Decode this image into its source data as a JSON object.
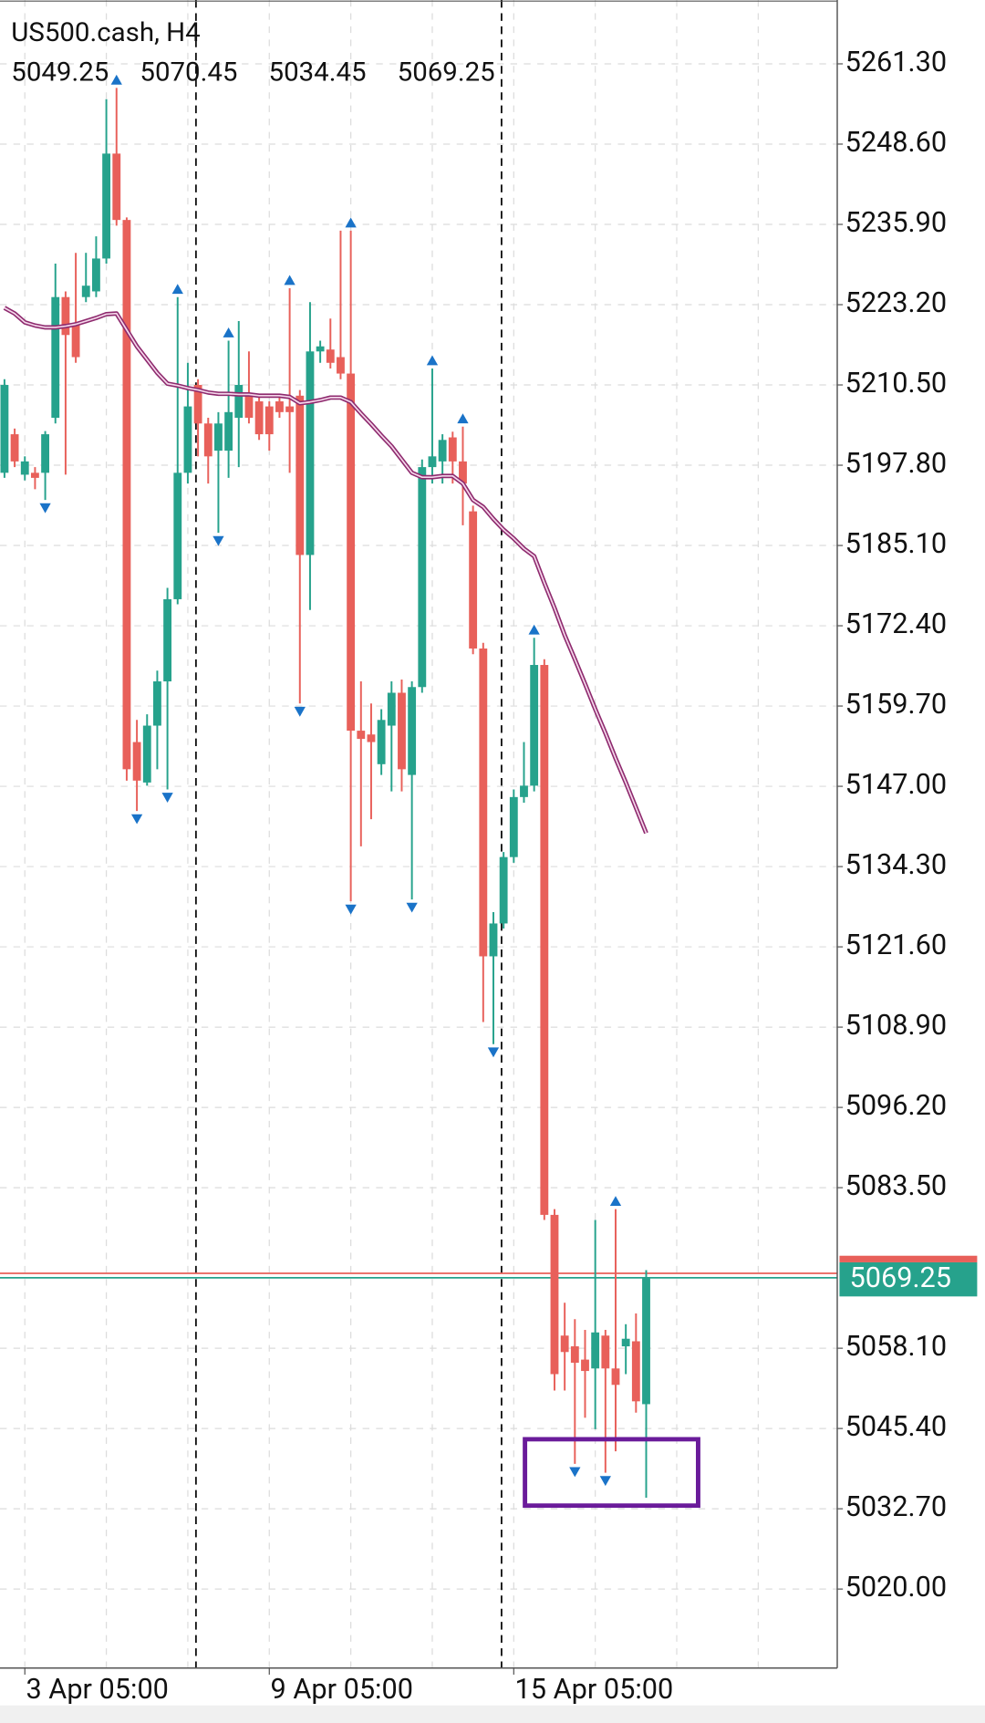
{
  "chart_data": {
    "type": "candlestick",
    "title": "US500.cash, H4",
    "categories": [
      null,
      null,
      "3 Apr 05:00",
      null,
      null,
      null,
      null,
      null,
      null,
      null,
      null,
      null,
      null,
      null,
      null,
      null,
      null,
      null,
      null,
      null,
      null,
      null,
      null,
      null,
      null,
      null,
      "9 Apr 05:00",
      null,
      null,
      null,
      null,
      null,
      null,
      null,
      null,
      null,
      null,
      null,
      null,
      null,
      null,
      null,
      null,
      null,
      null,
      null,
      null,
      null,
      null,
      null,
      "15 Apr 05:00",
      null,
      null,
      null,
      null,
      null,
      null,
      null,
      null,
      null,
      null,
      null,
      null,
      null
    ],
    "open": [
      5196.6,
      5202.7,
      5196.3,
      5196.6,
      5196.6,
      5205.3,
      5224.4,
      5220.1,
      5224.4,
      5225.3,
      5230.5,
      5247.1,
      5236.6,
      5154.0,
      5147.6,
      5156.6,
      5163.6,
      5176.6,
      5196.6,
      5210.5,
      5204.4,
      5200.1,
      5200.1,
      5205.3,
      5208.8,
      5207.9,
      5207.1,
      5207.9,
      5207.1,
      5208.8,
      5183.6,
      5215.8,
      5216.1,
      5214.9,
      5212.3,
      5155.8,
      5155.2,
      5150.5,
      5156.6,
      5161.8,
      5148.8,
      5162.7,
      5197.5,
      5198.4,
      5202.2,
      5198.4,
      5190.5,
      5168.8,
      5120.1,
      5125.3,
      5135.8,
      5145.3,
      5147.1,
      5166.2,
      5079.2,
      5060.1,
      5058.4,
      5056.3,
      5054.9,
      5060.1,
      5054.9,
      5058.4,
      5059.2,
      5049.25
    ],
    "high": [
      5211.4,
      5203.6,
      5199.2,
      5197.5,
      5203.2,
      5229.7,
      5225.3,
      5231.4,
      5231.4,
      5234.0,
      5255.7,
      5257.5,
      5237.0,
      5157.5,
      5158.4,
      5165.3,
      5178.4,
      5224.4,
      5214.0,
      5211.4,
      5205.3,
      5206.2,
      5217.5,
      5220.6,
      5215.8,
      5208.8,
      5207.9,
      5208.8,
      5225.8,
      5209.7,
      5223.6,
      5217.5,
      5221.0,
      5234.9,
      5234.9,
      5163.6,
      5160.1,
      5159.2,
      5163.6,
      5163.9,
      5163.6,
      5198.7,
      5213.1,
      5202.7,
      5203.1,
      5203.9,
      5191.4,
      5169.7,
      5127.1,
      5136.6,
      5146.5,
      5154.0,
      5170.5,
      5167.1,
      5080.1,
      5065.3,
      5062.7,
      5061.0,
      5078.4,
      5061.0,
      5080.1,
      5061.9,
      5063.6,
      5070.45
    ],
    "low": [
      5195.8,
      5197.5,
      5195.4,
      5194.0,
      5192.3,
      5204.4,
      5196.3,
      5214.0,
      5223.6,
      5224.4,
      5229.7,
      5235.7,
      5147.9,
      5143.1,
      5147.1,
      5149.7,
      5146.5,
      5175.8,
      5194.9,
      5199.2,
      5194.9,
      5187.1,
      5195.8,
      5197.5,
      5204.4,
      5201.8,
      5200.1,
      5205.3,
      5196.6,
      5160.1,
      5174.9,
      5214.0,
      5213.1,
      5211.4,
      5128.8,
      5137.5,
      5141.8,
      5148.8,
      5146.2,
      5146.2,
      5129.1,
      5161.8,
      5194.9,
      5194.9,
      5194.9,
      5188.3,
      5167.9,
      5109.7,
      5106.2,
      5124.5,
      5134.9,
      5144.4,
      5146.2,
      5078.4,
      5051.4,
      5051.4,
      5039.8,
      5047.1,
      5045.3,
      5038.4,
      5041.8,
      5054.0,
      5047.9,
      5034.45
    ],
    "close": [
      5210.5,
      5198.4,
      5198.4,
      5195.8,
      5202.7,
      5224.4,
      5218.4,
      5214.9,
      5226.2,
      5230.5,
      5247.1,
      5236.6,
      5149.7,
      5147.9,
      5156.6,
      5163.6,
      5176.6,
      5196.6,
      5207.1,
      5204.4,
      5199.2,
      5204.4,
      5206.2,
      5210.5,
      5205.3,
      5202.7,
      5202.7,
      5206.2,
      5206.2,
      5183.6,
      5215.8,
      5216.6,
      5214.0,
      5212.3,
      5155.8,
      5154.5,
      5154.0,
      5157.5,
      5161.8,
      5149.7,
      5162.7,
      5197.5,
      5199.2,
      5201.8,
      5198.4,
      5194.9,
      5168.8,
      5120.1,
      5125.3,
      5135.8,
      5145.3,
      5147.1,
      5166.2,
      5079.2,
      5054.0,
      5057.5,
      5055.8,
      5054.5,
      5060.6,
      5054.9,
      5052.3,
      5059.6,
      5049.7,
      5069.25
    ],
    "up_color": "#26a28c",
    "down_color": "#e8605a",
    "moving_average": {
      "color": "#8e2a6e",
      "values": [
        5222.7,
        5221.8,
        5220.4,
        5219.9,
        5219.6,
        5219.6,
        5219.8,
        5220.1,
        5220.6,
        5221.1,
        5221.7,
        5221.8,
        5219.2,
        5216.6,
        5214.5,
        5212.4,
        5210.7,
        5210.4,
        5210.0,
        5209.7,
        5209.3,
        5209.1,
        5209.1,
        5209.0,
        5209.0,
        5208.8,
        5208.8,
        5208.8,
        5208.6,
        5207.6,
        5207.8,
        5208.1,
        5208.5,
        5208.5,
        5207.8,
        5206.0,
        5204.3,
        5202.5,
        5200.8,
        5198.7,
        5196.6,
        5195.9,
        5195.9,
        5196.1,
        5196.1,
        5194.9,
        5192.3,
        5191.2,
        5189.3,
        5187.6,
        5186.2,
        5184.6,
        5183.4,
        5179.2,
        5175.2,
        5170.9,
        5167.1,
        5163.2,
        5159.2,
        5155.4,
        5151.4,
        5147.6,
        5143.6,
        5139.6
      ]
    },
    "fractal_up": [
      11,
      17,
      22,
      28,
      34,
      42,
      45,
      52,
      60
    ],
    "fractal_down": [
      4,
      13,
      16,
      21,
      29,
      34,
      40,
      48,
      56,
      59
    ],
    "fractal_color": "#1a73c8",
    "bid": 5069.25,
    "ask": 5069.95,
    "bid_color": "#26a28c",
    "ask_color": "#e8605a",
    "annotation_box": {
      "x": [
        51.1,
        68.1
      ],
      "y": [
        5033.2,
        5043.7
      ],
      "color": "#6a1b9a"
    },
    "ylim": [
      5007.5,
      5271.4
    ],
    "yticks": [
      {
        "value": 5020,
        "label": "5020.00"
      },
      {
        "value": 5032.7,
        "label": "5032.70"
      },
      {
        "value": 5045.4,
        "label": "5045.40"
      },
      {
        "value": 5058.1,
        "label": "5058.10"
      },
      {
        "value": 5083.5,
        "label": "5083.50"
      },
      {
        "value": 5096.2,
        "label": "5096.20"
      },
      {
        "value": 5108.9,
        "label": "5108.90"
      },
      {
        "value": 5121.6,
        "label": "5121.60"
      },
      {
        "value": 5134.3,
        "label": "5134.30"
      },
      {
        "value": 5147,
        "label": "5147.00"
      },
      {
        "value": 5159.7,
        "label": "5159.70"
      },
      {
        "value": 5172.4,
        "label": "5172.40"
      },
      {
        "value": 5185.1,
        "label": "5185.10"
      },
      {
        "value": 5197.8,
        "label": "5197.80"
      },
      {
        "value": 5210.5,
        "label": "5210.50"
      },
      {
        "value": 5223.2,
        "label": "5223.20"
      },
      {
        "value": 5235.9,
        "label": "5235.90"
      },
      {
        "value": 5248.6,
        "label": "5248.60"
      },
      {
        "value": 5261.3,
        "label": "5261.30"
      }
    ],
    "grid": true
  }
}
